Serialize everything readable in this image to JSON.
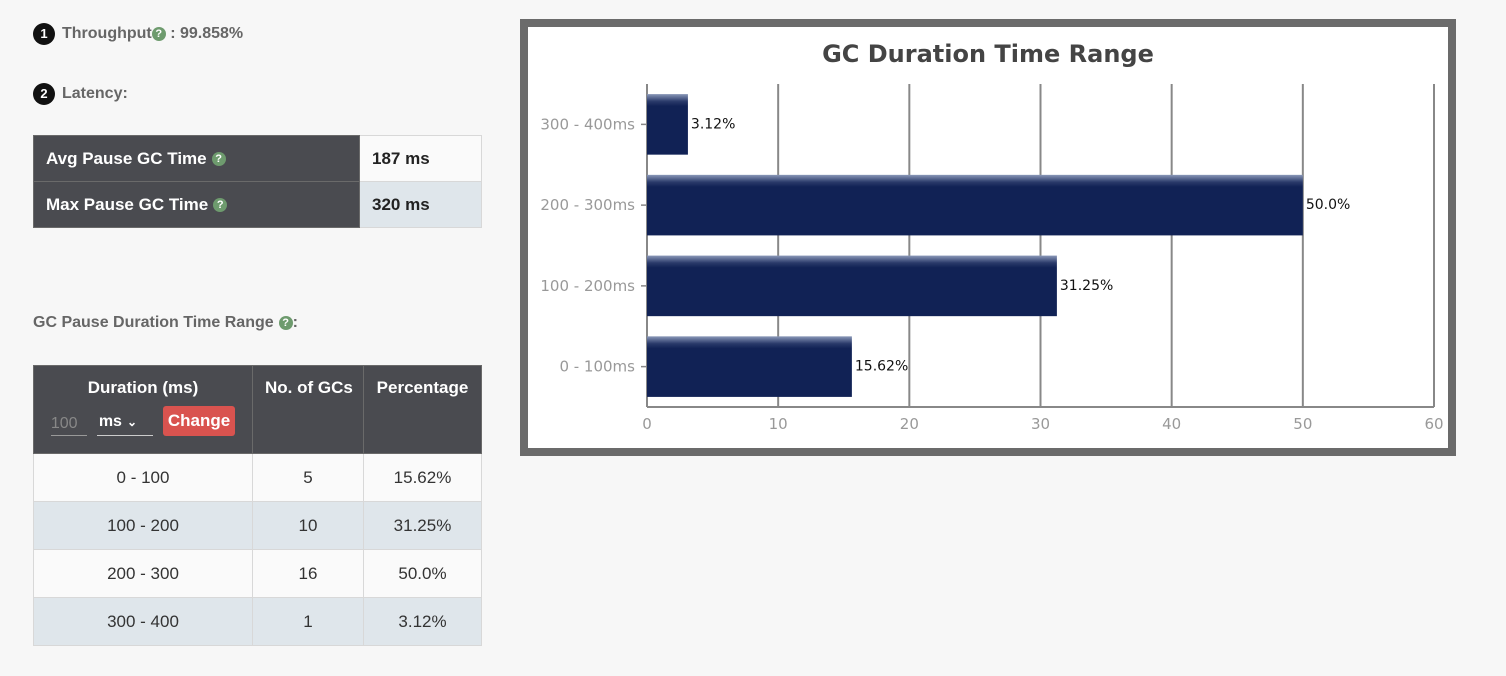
{
  "throughput": {
    "number": "1",
    "label": "Throughput",
    "help": "?",
    "value": ": 99.858%"
  },
  "latency": {
    "number": "2",
    "label": "Latency:"
  },
  "latency_table": [
    {
      "label": "Avg Pause GC Time",
      "help": "?",
      "value": "187 ms"
    },
    {
      "label": "Max Pause GC Time",
      "help": "?",
      "value": "320 ms"
    }
  ],
  "range_section": {
    "title": "GC Pause Duration Time Range",
    "help": "?",
    "suffix": ":"
  },
  "range_table": {
    "headers": {
      "duration": "Duration (ms)",
      "count": "No. of GCs",
      "percentage": "Percentage"
    },
    "controls": {
      "interval_placeholder": "100",
      "unit": "ms",
      "change_label": "Change"
    },
    "rows": [
      {
        "range": "0 - 100",
        "count": "5",
        "percentage": "15.62%"
      },
      {
        "range": "100 - 200",
        "count": "10",
        "percentage": "31.25%"
      },
      {
        "range": "200 - 300",
        "count": "16",
        "percentage": "50.0%"
      },
      {
        "range": "300 - 400",
        "count": "1",
        "percentage": "3.12%"
      }
    ]
  },
  "colors": {
    "bar": "#112255",
    "header_bg": "#4a4b50",
    "change_button": "#d9534f",
    "help_icon": "#6e9b6e"
  },
  "chart_data": {
    "type": "bar",
    "orientation": "horizontal",
    "title": "GC Duration Time Range",
    "categories": [
      "0 - 100ms",
      "100 - 200ms",
      "200 - 300ms",
      "300 - 400ms"
    ],
    "values": [
      15.62,
      31.25,
      50.0,
      3.12
    ],
    "data_labels": [
      "15.62%",
      "31.25%",
      "50.0%",
      "3.12%"
    ],
    "xlim": [
      0,
      60
    ],
    "xticks": [
      "0",
      "10",
      "20",
      "30",
      "40",
      "50",
      "60"
    ],
    "grid": true
  }
}
